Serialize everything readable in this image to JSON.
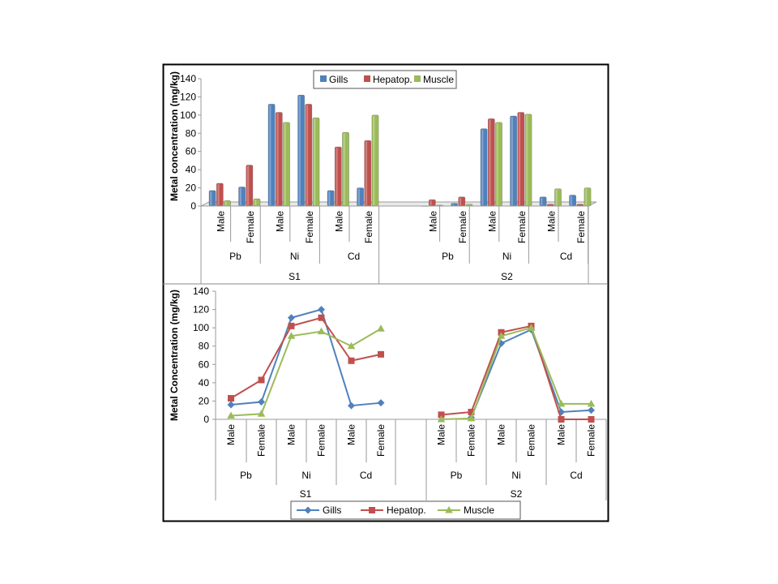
{
  "colors": {
    "Gills": "#4F81BD",
    "Hepatop.": "#C0504D",
    "Muscle": "#9BBB59",
    "frame": "#000000",
    "axis": "#9a9a9a"
  },
  "chart_data": [
    {
      "type": "bar",
      "ylabel": "Metal concentration (mg/kg)",
      "ylim": [
        0,
        140
      ],
      "yticks": [
        0,
        20,
        40,
        60,
        80,
        100,
        120,
        140
      ],
      "legend": "top-center",
      "grid": false,
      "sites": [
        "S1",
        "S2"
      ],
      "metals": [
        "Pb",
        "Ni",
        "Cd"
      ],
      "sexes": [
        "Male",
        "Female"
      ],
      "series": [
        {
          "name": "Gills",
          "values": [
            17,
            21,
            112,
            122,
            17,
            20,
            0,
            3,
            85,
            99,
            10,
            12
          ]
        },
        {
          "name": "Hepatop.",
          "values": [
            25,
            45,
            103,
            112,
            65,
            72,
            7,
            10,
            96,
            103,
            2,
            2
          ]
        },
        {
          "name": "Muscle",
          "values": [
            6,
            8,
            92,
            97,
            81,
            100,
            1,
            2,
            92,
            101,
            19,
            20
          ]
        }
      ]
    },
    {
      "type": "line",
      "ylabel": "Metal Concentration (mg/kg)",
      "ylim": [
        0,
        140
      ],
      "yticks": [
        0,
        20,
        40,
        60,
        80,
        100,
        120,
        140
      ],
      "legend": "bottom-center",
      "grid": false,
      "sites": [
        "S1",
        "S2"
      ],
      "metals": [
        "Pb",
        "Ni",
        "Cd"
      ],
      "sexes": [
        "Male",
        "Female"
      ],
      "series": [
        {
          "name": "Gills",
          "marker": "diamond",
          "values": [
            16,
            19,
            111,
            120,
            15,
            18,
            null,
            2,
            83,
            98,
            8,
            10
          ]
        },
        {
          "name": "Hepatop.",
          "marker": "square",
          "values": [
            23,
            43,
            102,
            111,
            64,
            71,
            5,
            8,
            95,
            102,
            0,
            0
          ]
        },
        {
          "name": "Muscle",
          "marker": "triangle",
          "values": [
            4,
            6,
            91,
            96,
            80,
            99,
            0,
            1,
            91,
            100,
            17,
            17
          ]
        }
      ]
    }
  ]
}
